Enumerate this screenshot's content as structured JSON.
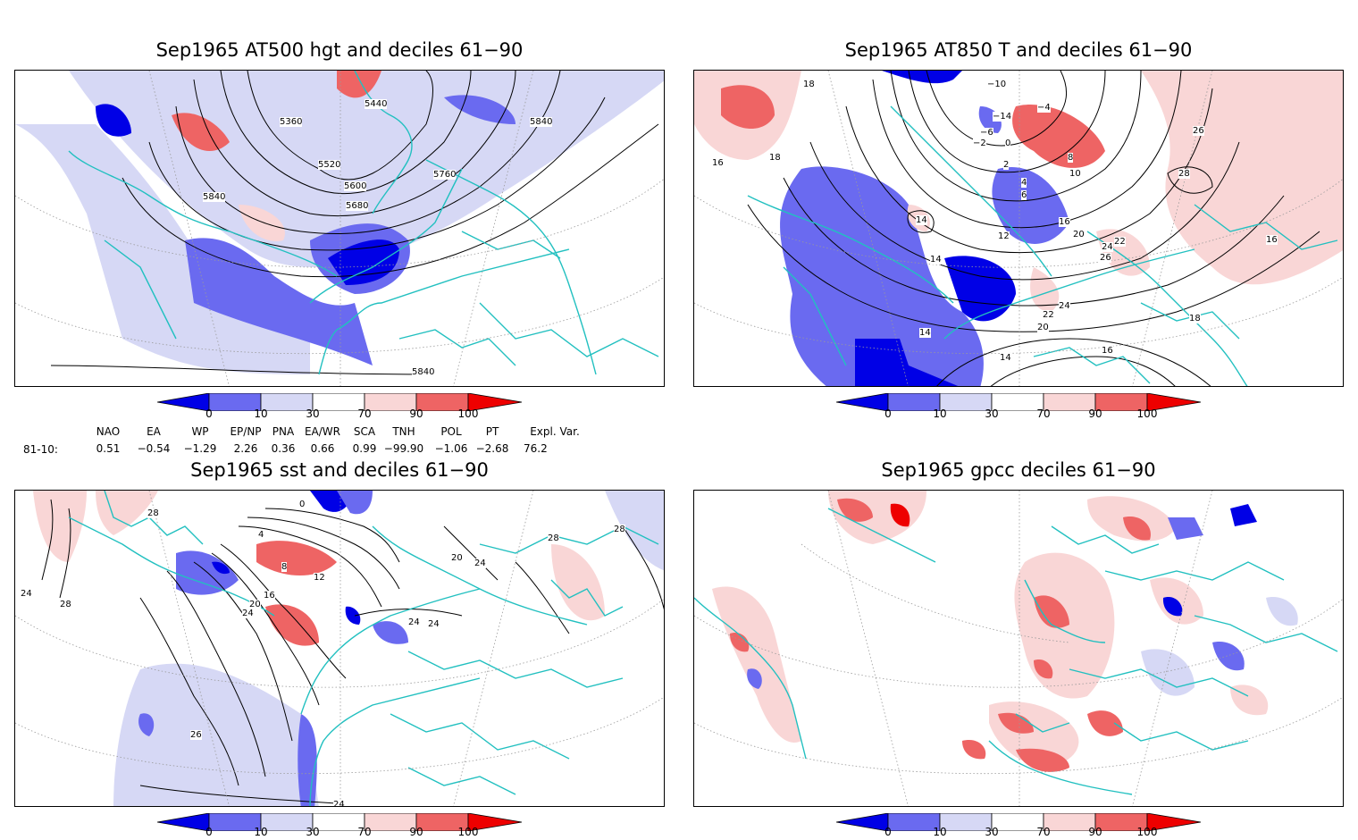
{
  "panels": [
    {
      "id": "p1",
      "title": "Sep1965 AT500 hgt and deciles 61−90",
      "contour_labels": [
        "5440",
        "5360",
        "5520",
        "5600",
        "5680",
        "5760",
        "5840",
        "5840",
        "5840"
      ]
    },
    {
      "id": "p2",
      "title": "Sep1965 AT850 T and deciles 61−90",
      "contour_labels": [
        "−10",
        "−14",
        "−6",
        "−2",
        "0",
        "−4",
        "4",
        "2",
        "6",
        "8",
        "10",
        "12",
        "14",
        "14",
        "14",
        "14",
        "16",
        "16",
        "16",
        "16",
        "18",
        "18",
        "20",
        "20",
        "22",
        "22",
        "24",
        "24",
        "26",
        "26",
        "28",
        "18"
      ]
    },
    {
      "id": "p3",
      "title": "Sep1965 sst and deciles 61−90",
      "contour_labels": [
        "28",
        "24",
        "28",
        "0",
        "4",
        "8",
        "12",
        "16",
        "20",
        "24",
        "24",
        "24",
        "26",
        "24",
        "28",
        "28",
        "20",
        "24"
      ]
    },
    {
      "id": "p4",
      "title": "Sep1965 gpcc deciles 61−90",
      "contour_labels": []
    }
  ],
  "colorbar": {
    "tick_labels": [
      "0",
      "10",
      "30",
      "70",
      "90",
      "100"
    ],
    "colors": [
      "#0000e6",
      "#6a6af0",
      "#d6d8f5",
      "#ffffff",
      "#f9d6d6",
      "#ee6464",
      "#ee0000"
    ]
  },
  "indices": {
    "row_label": "81-10:",
    "columns": [
      {
        "name": "NAO",
        "value": "0.51"
      },
      {
        "name": "EA",
        "value": "−0.54"
      },
      {
        "name": "WP",
        "value": "−1.29"
      },
      {
        "name": "EP/NP",
        "value": "2.26"
      },
      {
        "name": "PNA",
        "value": "0.36"
      },
      {
        "name": "EA/WR",
        "value": "0.66"
      },
      {
        "name": "SCA",
        "value": "0.99"
      },
      {
        "name": "TNH",
        "value": "−99.90"
      },
      {
        "name": "POL",
        "value": "−1.06"
      },
      {
        "name": "PT",
        "value": "−2.68"
      },
      {
        "name": "Expl. Var.",
        "value": "76.2"
      }
    ]
  }
}
